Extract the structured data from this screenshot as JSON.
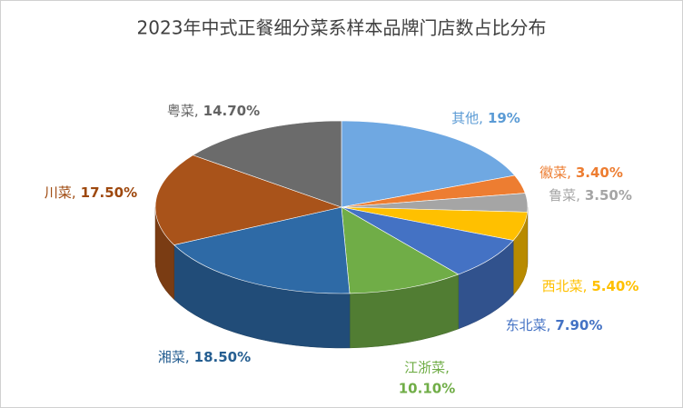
{
  "chart_data": {
    "type": "pie3d",
    "title": "2023年中式正餐细分菜系样本品牌门店数占比分布",
    "categories": [
      "其他,",
      "徽菜,",
      "鲁菜,",
      "西北菜,",
      "东北菜,",
      "江浙菜,",
      "湘菜,",
      "川菜,",
      "粤菜,"
    ],
    "values": [
      19,
      3.4,
      3.5,
      5.4,
      7.9,
      10.1,
      18.5,
      17.5,
      14.7
    ],
    "value_labels": [
      "19%",
      "3.40%",
      "3.50%",
      "5.40%",
      "7.90%",
      "10.10%",
      "18.50%",
      "17.50%",
      "14.70%"
    ],
    "colors": [
      "#6fa8e2",
      "#ed7d31",
      "#a5a5a5",
      "#ffc000",
      "#4472c4",
      "#70ad47",
      "#2e6aa6",
      "#a9531a",
      "#6b6b6b"
    ],
    "label_colors": [
      "#5b9bd5",
      "#ed7d31",
      "#a5a5a5",
      "#ffc000",
      "#4472c4",
      "#70ad47",
      "#255e91",
      "#9e480e",
      "#636363"
    ]
  }
}
